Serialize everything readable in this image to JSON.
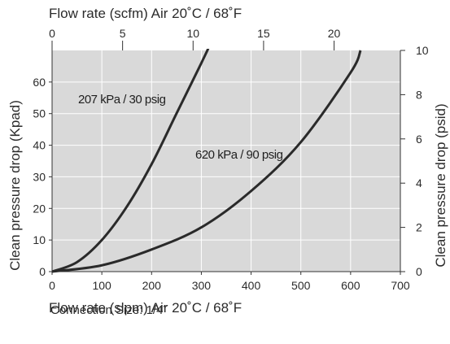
{
  "chart_data": {
    "type": "line",
    "title": "",
    "top_axis": {
      "label": "Flow rate (scfm) Air 20˚C / 68˚F",
      "range": [
        0,
        24.7
      ],
      "ticks": [
        "0",
        "5",
        "10",
        "15",
        "20"
      ],
      "tick_values": [
        0,
        5,
        10,
        15,
        20
      ]
    },
    "x_axis": {
      "label": "Flow rate (slpm) Air 20˚C / 68˚F",
      "range": [
        0,
        700
      ],
      "ticks": [
        "0",
        "100",
        "200",
        "300",
        "400",
        "500",
        "600",
        "700"
      ],
      "tick_values": [
        0,
        100,
        200,
        300,
        400,
        500,
        600,
        700
      ]
    },
    "y_axis_left": {
      "label": "Clean pressure drop (Kpad)",
      "range": [
        0,
        70
      ],
      "ticks": [
        "0",
        "10",
        "20",
        "30",
        "40",
        "50",
        "60"
      ],
      "tick_values": [
        0,
        10,
        20,
        30,
        40,
        50,
        60
      ]
    },
    "y_axis_right": {
      "label": "Clean pressure drop (psid)",
      "range": [
        0,
        10
      ],
      "ticks": [
        "0",
        "2",
        "4",
        "6",
        "8",
        "10"
      ],
      "tick_values": [
        0,
        2,
        4,
        6,
        8,
        10
      ]
    },
    "grid": true,
    "series": [
      {
        "name": "207 kPa / 30 psig",
        "x": [
          0,
          50,
          100,
          150,
          200,
          250,
          300,
          315
        ],
        "y": [
          0,
          3,
          10,
          20.5,
          34,
          50,
          66,
          71
        ],
        "color": "#2a2a2a"
      },
      {
        "name": "620 kPa / 90 psig",
        "x": [
          0,
          100,
          200,
          300,
          400,
          500,
          600,
          620
        ],
        "y": [
          0,
          2,
          7,
          14,
          25.5,
          41,
          63,
          70
        ],
        "color": "#2a2a2a"
      }
    ],
    "plot_background": "#d9d9d9"
  },
  "note": {
    "prefix": "Connection Size: ",
    "value": "1/4˝"
  }
}
